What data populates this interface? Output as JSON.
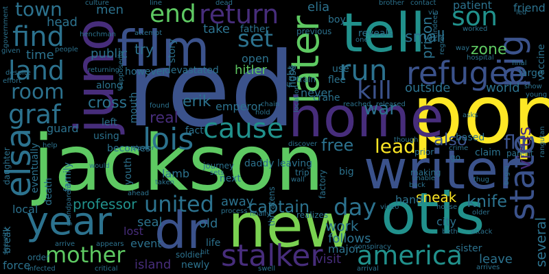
{
  "words": [
    {
      "text": "jackson",
      "color": "#5ec962"
    },
    {
      "text": "red",
      "color": "#3b528b"
    },
    {
      "text": "pop",
      "color": "#fde725"
    },
    {
      "text": "home",
      "color": "#472d7b"
    },
    {
      "text": "writer",
      "color": "#3b528b"
    },
    {
      "text": "new",
      "color": "#7ad151"
    },
    {
      "text": "otis",
      "color": "#21918c"
    },
    {
      "text": "film",
      "color": "#3b528b"
    },
    {
      "text": "tell",
      "color": "#21918c"
    },
    {
      "text": "juno",
      "color": "#472d7b"
    },
    {
      "text": "year",
      "color": "#2c728e"
    },
    {
      "text": "dr",
      "color": "#3b528b"
    },
    {
      "text": "later",
      "color": "#5ec962"
    },
    {
      "text": "refugee",
      "color": "#3b528b"
    },
    {
      "text": "pig",
      "color": "#3b528b"
    },
    {
      "text": "state",
      "color": "#3b528b"
    },
    {
      "text": "america",
      "color": "#21918c"
    },
    {
      "text": "stalker",
      "color": "#472d7b"
    },
    {
      "text": "mother",
      "color": "#5ec962"
    },
    {
      "text": "elsa",
      "color": "#2c728e"
    },
    {
      "text": "lois",
      "color": "#2c728e"
    },
    {
      "text": "cause",
      "color": "#21918c"
    },
    {
      "text": "return",
      "color": "#472d7b"
    },
    {
      "text": "end",
      "color": "#5ec962"
    },
    {
      "text": "find",
      "color": "#2c728e"
    },
    {
      "text": "land",
      "color": "#2c728e"
    },
    {
      "text": "room",
      "color": "#2c728e"
    },
    {
      "text": "graf",
      "color": "#2c728e"
    },
    {
      "text": "run",
      "color": "#2c728e"
    },
    {
      "text": "kill",
      "color": "#3b528b"
    },
    {
      "text": "son",
      "color": "#21918c"
    },
    {
      "text": "united",
      "color": "#2c728e"
    },
    {
      "text": "day",
      "color": "#2c728e"
    },
    {
      "text": "lead",
      "color": "#fde725"
    },
    {
      "text": "set",
      "color": "#2c728e"
    },
    {
      "text": "war",
      "color": "#2c728e"
    },
    {
      "text": "town",
      "color": "#2c728e"
    },
    {
      "text": "free",
      "color": "#2c728e"
    },
    {
      "text": "also",
      "color": "#3b528b"
    },
    {
      "text": "fly",
      "color": "#3b528b"
    },
    {
      "text": "virus",
      "color": "#472d7b"
    },
    {
      "text": "knife",
      "color": "#2c728e"
    },
    {
      "text": "sneak",
      "color": "#fde725"
    },
    {
      "text": "captain",
      "color": "#2c728e"
    },
    {
      "text": "professor",
      "color": "#21918c"
    },
    {
      "text": "island",
      "color": "#472d7b"
    },
    {
      "text": "several",
      "color": "#2c728e"
    },
    {
      "text": "zone",
      "color": "#5ec962"
    },
    {
      "text": "outside",
      "color": "#2c728e"
    },
    {
      "text": "world",
      "color": "#2c728e"
    },
    {
      "text": "small",
      "color": "#2c728e"
    },
    {
      "text": "prison",
      "color": "#2c728e"
    },
    {
      "text": "patient",
      "color": "#2c728e"
    },
    {
      "text": "friend",
      "color": "#2c728e"
    },
    {
      "text": "elia",
      "color": "#2c728e"
    },
    {
      "text": "take",
      "color": "#2c728e"
    },
    {
      "text": "hitler",
      "color": "#5ec962"
    },
    {
      "text": "erik",
      "color": "#2c728e"
    },
    {
      "text": "emperor",
      "color": "#2c728e"
    },
    {
      "text": "real",
      "color": "#472d7b"
    },
    {
      "text": "cross",
      "color": "#2c728e"
    },
    {
      "text": "try",
      "color": "#2c728e"
    },
    {
      "text": "public",
      "color": "#2c728e"
    },
    {
      "text": "time",
      "color": "#2c728e"
    },
    {
      "text": "head",
      "color": "#2c728e"
    },
    {
      "text": "men",
      "color": "#2c728e"
    },
    {
      "text": "guard",
      "color": "#2c728e"
    },
    {
      "text": "seal",
      "color": "#2c728e"
    },
    {
      "text": "lost",
      "color": "#472d7b"
    },
    {
      "text": "event",
      "color": "#2c728e"
    },
    {
      "text": "old",
      "color": "#2c728e"
    },
    {
      "text": "away",
      "color": "#2c728e"
    },
    {
      "text": "work",
      "color": "#2c728e"
    },
    {
      "text": "follows",
      "color": "#2c728e"
    },
    {
      "text": "major",
      "color": "#2c728e"
    },
    {
      "text": "visit",
      "color": "#472d7b"
    },
    {
      "text": "hand",
      "color": "#2c728e"
    },
    {
      "text": "city",
      "color": "#2c728e"
    },
    {
      "text": "leave",
      "color": "#2c728e"
    },
    {
      "text": "sister",
      "color": "#2c728e"
    },
    {
      "text": "lamb",
      "color": "#2c728e"
    },
    {
      "text": "using",
      "color": "#2c728e"
    },
    {
      "text": "becomes",
      "color": "#2c728e"
    },
    {
      "text": "family",
      "color": "#2c728e"
    },
    {
      "text": "death",
      "color": "#2c728e"
    },
    {
      "text": "eventually",
      "color": "#2c728e"
    },
    {
      "text": "local",
      "color": "#2c728e"
    },
    {
      "text": "force",
      "color": "#2c728e"
    },
    {
      "text": "never",
      "color": "#2c728e"
    },
    {
      "text": "fact",
      "color": "#2c728e"
    },
    {
      "text": "daddy",
      "color": "#2c728e"
    },
    {
      "text": "leaving",
      "color": "#2c728e"
    },
    {
      "text": "journey",
      "color": "#2c728e"
    },
    {
      "text": "next",
      "color": "#2c728e"
    },
    {
      "text": "threatens",
      "color": "#2c728e"
    },
    {
      "text": "devastated",
      "color": "#2c728e"
    },
    {
      "text": "however",
      "color": "#2c728e"
    },
    {
      "text": "open",
      "color": "#2c728e"
    },
    {
      "text": "use",
      "color": "#2c728e"
    },
    {
      "text": "fight",
      "color": "#2c728e"
    },
    {
      "text": "flee",
      "color": "#2c728e"
    },
    {
      "text": "crane",
      "color": "#2c728e"
    },
    {
      "text": "claim",
      "color": "#2c728e"
    },
    {
      "text": "parent",
      "color": "#2c728e"
    },
    {
      "text": "based",
      "color": "#2c728e"
    },
    {
      "text": "reveals",
      "color": "#2c728e"
    },
    {
      "text": "boy",
      "color": "#2c728e"
    },
    {
      "text": "father",
      "color": "#2c728e"
    },
    {
      "text": "story",
      "color": "#2c728e"
    },
    {
      "text": "along",
      "color": "#2c728e"
    },
    {
      "text": "mouth",
      "color": "#2c728e"
    },
    {
      "text": "youth",
      "color": "#2c728e"
    },
    {
      "text": "left",
      "color": "#2c728e"
    },
    {
      "text": "big",
      "color": "#2c728e"
    },
    {
      "text": "factory",
      "color": "#2c728e"
    },
    {
      "text": "trip",
      "color": "#2c728e"
    },
    {
      "text": "large",
      "color": "#2c728e"
    },
    {
      "text": "vaccine",
      "color": "#2c728e"
    },
    {
      "text": "nose",
      "color": "#2c728e"
    },
    {
      "text": "break",
      "color": "#2c728e"
    },
    {
      "text": "order",
      "color": "#2c728e"
    },
    {
      "text": "culture",
      "color": "#2c728e"
    },
    {
      "text": "dead",
      "color": "#2c728e"
    },
    {
      "text": "brother",
      "color": "#2c728e"
    },
    {
      "text": "contact",
      "color": "#2c728e"
    },
    {
      "text": "henchman",
      "color": "#2c728e"
    },
    {
      "text": "previous",
      "color": "#2c728e"
    },
    {
      "text": "reindeer",
      "color": "#2c728e"
    },
    {
      "text": "worked",
      "color": "#2c728e"
    },
    {
      "text": "regret",
      "color": "#2c728e"
    },
    {
      "text": "government",
      "color": "#2c728e"
    },
    {
      "text": "given",
      "color": "#2c728e"
    },
    {
      "text": "people",
      "color": "#2c728e"
    },
    {
      "text": "returning",
      "color": "#2c728e"
    },
    {
      "text": "effort",
      "color": "#2c728e"
    },
    {
      "text": "despite",
      "color": "#2c728e"
    },
    {
      "text": "supposedly",
      "color": "#2c728e"
    },
    {
      "text": "train",
      "color": "#2c728e"
    },
    {
      "text": "location",
      "color": "#2c728e"
    },
    {
      "text": "chain",
      "color": "#2c728e"
    },
    {
      "text": "hold",
      "color": "#2c728e"
    },
    {
      "text": "reached",
      "color": "#2c728e"
    },
    {
      "text": "released",
      "color": "#2c728e"
    },
    {
      "text": "found",
      "color": "#2c728e"
    },
    {
      "text": "asks",
      "color": "#2c728e"
    },
    {
      "text": "though",
      "color": "#2c728e"
    },
    {
      "text": "prior",
      "color": "#2c728e"
    },
    {
      "text": "crime",
      "color": "#2c728e"
    },
    {
      "text": "go",
      "color": "#2c728e"
    },
    {
      "text": "making",
      "color": "#2c728e"
    },
    {
      "text": "unable",
      "color": "#2c728e"
    },
    {
      "text": "back",
      "color": "#2c728e"
    },
    {
      "text": "thug",
      "color": "#2c728e"
    },
    {
      "text": "house",
      "color": "#2c728e"
    },
    {
      "text": "older",
      "color": "#2c728e"
    },
    {
      "text": "beth",
      "color": "#2c728e"
    },
    {
      "text": "attack",
      "color": "#2c728e"
    },
    {
      "text": "arrives",
      "color": "#2c728e"
    },
    {
      "text": "arrival",
      "color": "#2c728e"
    },
    {
      "text": "critical",
      "color": "#2c728e"
    },
    {
      "text": "infected",
      "color": "#2c728e"
    },
    {
      "text": "arrive",
      "color": "#2c728e"
    },
    {
      "text": "security",
      "color": "#2c728e"
    },
    {
      "text": "grandparent",
      "color": "#2c728e"
    },
    {
      "text": "ahead",
      "color": "#2c728e"
    },
    {
      "text": "taken",
      "color": "#2c728e"
    },
    {
      "text": "viewer",
      "color": "#2c728e"
    },
    {
      "text": "would",
      "color": "#2c728e"
    },
    {
      "text": "help",
      "color": "#2c728e"
    },
    {
      "text": "daughter",
      "color": "#2c728e"
    },
    {
      "text": "soldier",
      "color": "#2c728e"
    },
    {
      "text": "newly",
      "color": "#2c728e"
    },
    {
      "text": "life",
      "color": "#2c728e"
    },
    {
      "text": "hit",
      "color": "#2c728e"
    },
    {
      "text": "appears",
      "color": "#2c728e"
    },
    {
      "text": "realizes",
      "color": "#2c728e"
    },
    {
      "text": "finally",
      "color": "#2c728e"
    },
    {
      "text": "process",
      "color": "#2c728e"
    },
    {
      "text": "conspiracy",
      "color": "#2c728e"
    },
    {
      "text": "video",
      "color": "#2c728e"
    },
    {
      "text": "begin",
      "color": "#2c728e"
    },
    {
      "text": "hospital",
      "color": "#2c728e"
    },
    {
      "text": "final",
      "color": "#2c728e"
    },
    {
      "text": "show",
      "color": "#2c728e"
    },
    {
      "text": "young",
      "color": "#2c728e"
    },
    {
      "text": "via",
      "color": "#2c728e"
    },
    {
      "text": "led",
      "color": "#2c728e"
    },
    {
      "text": "one",
      "color": "#2c728e"
    },
    {
      "text": "line",
      "color": "#2c728e"
    },
    {
      "text": "attempt",
      "color": "#2c728e"
    },
    {
      "text": "way",
      "color": "#2c728e"
    },
    {
      "text": "wall",
      "color": "#2c728e"
    },
    {
      "text": "swell",
      "color": "#2c728e"
    },
    {
      "text": "rangutan",
      "color": "#2c728e"
    },
    {
      "text": "discover",
      "color": "#2c728e"
    },
    {
      "text": "sets",
      "color": "#2c728e"
    }
  ]
}
